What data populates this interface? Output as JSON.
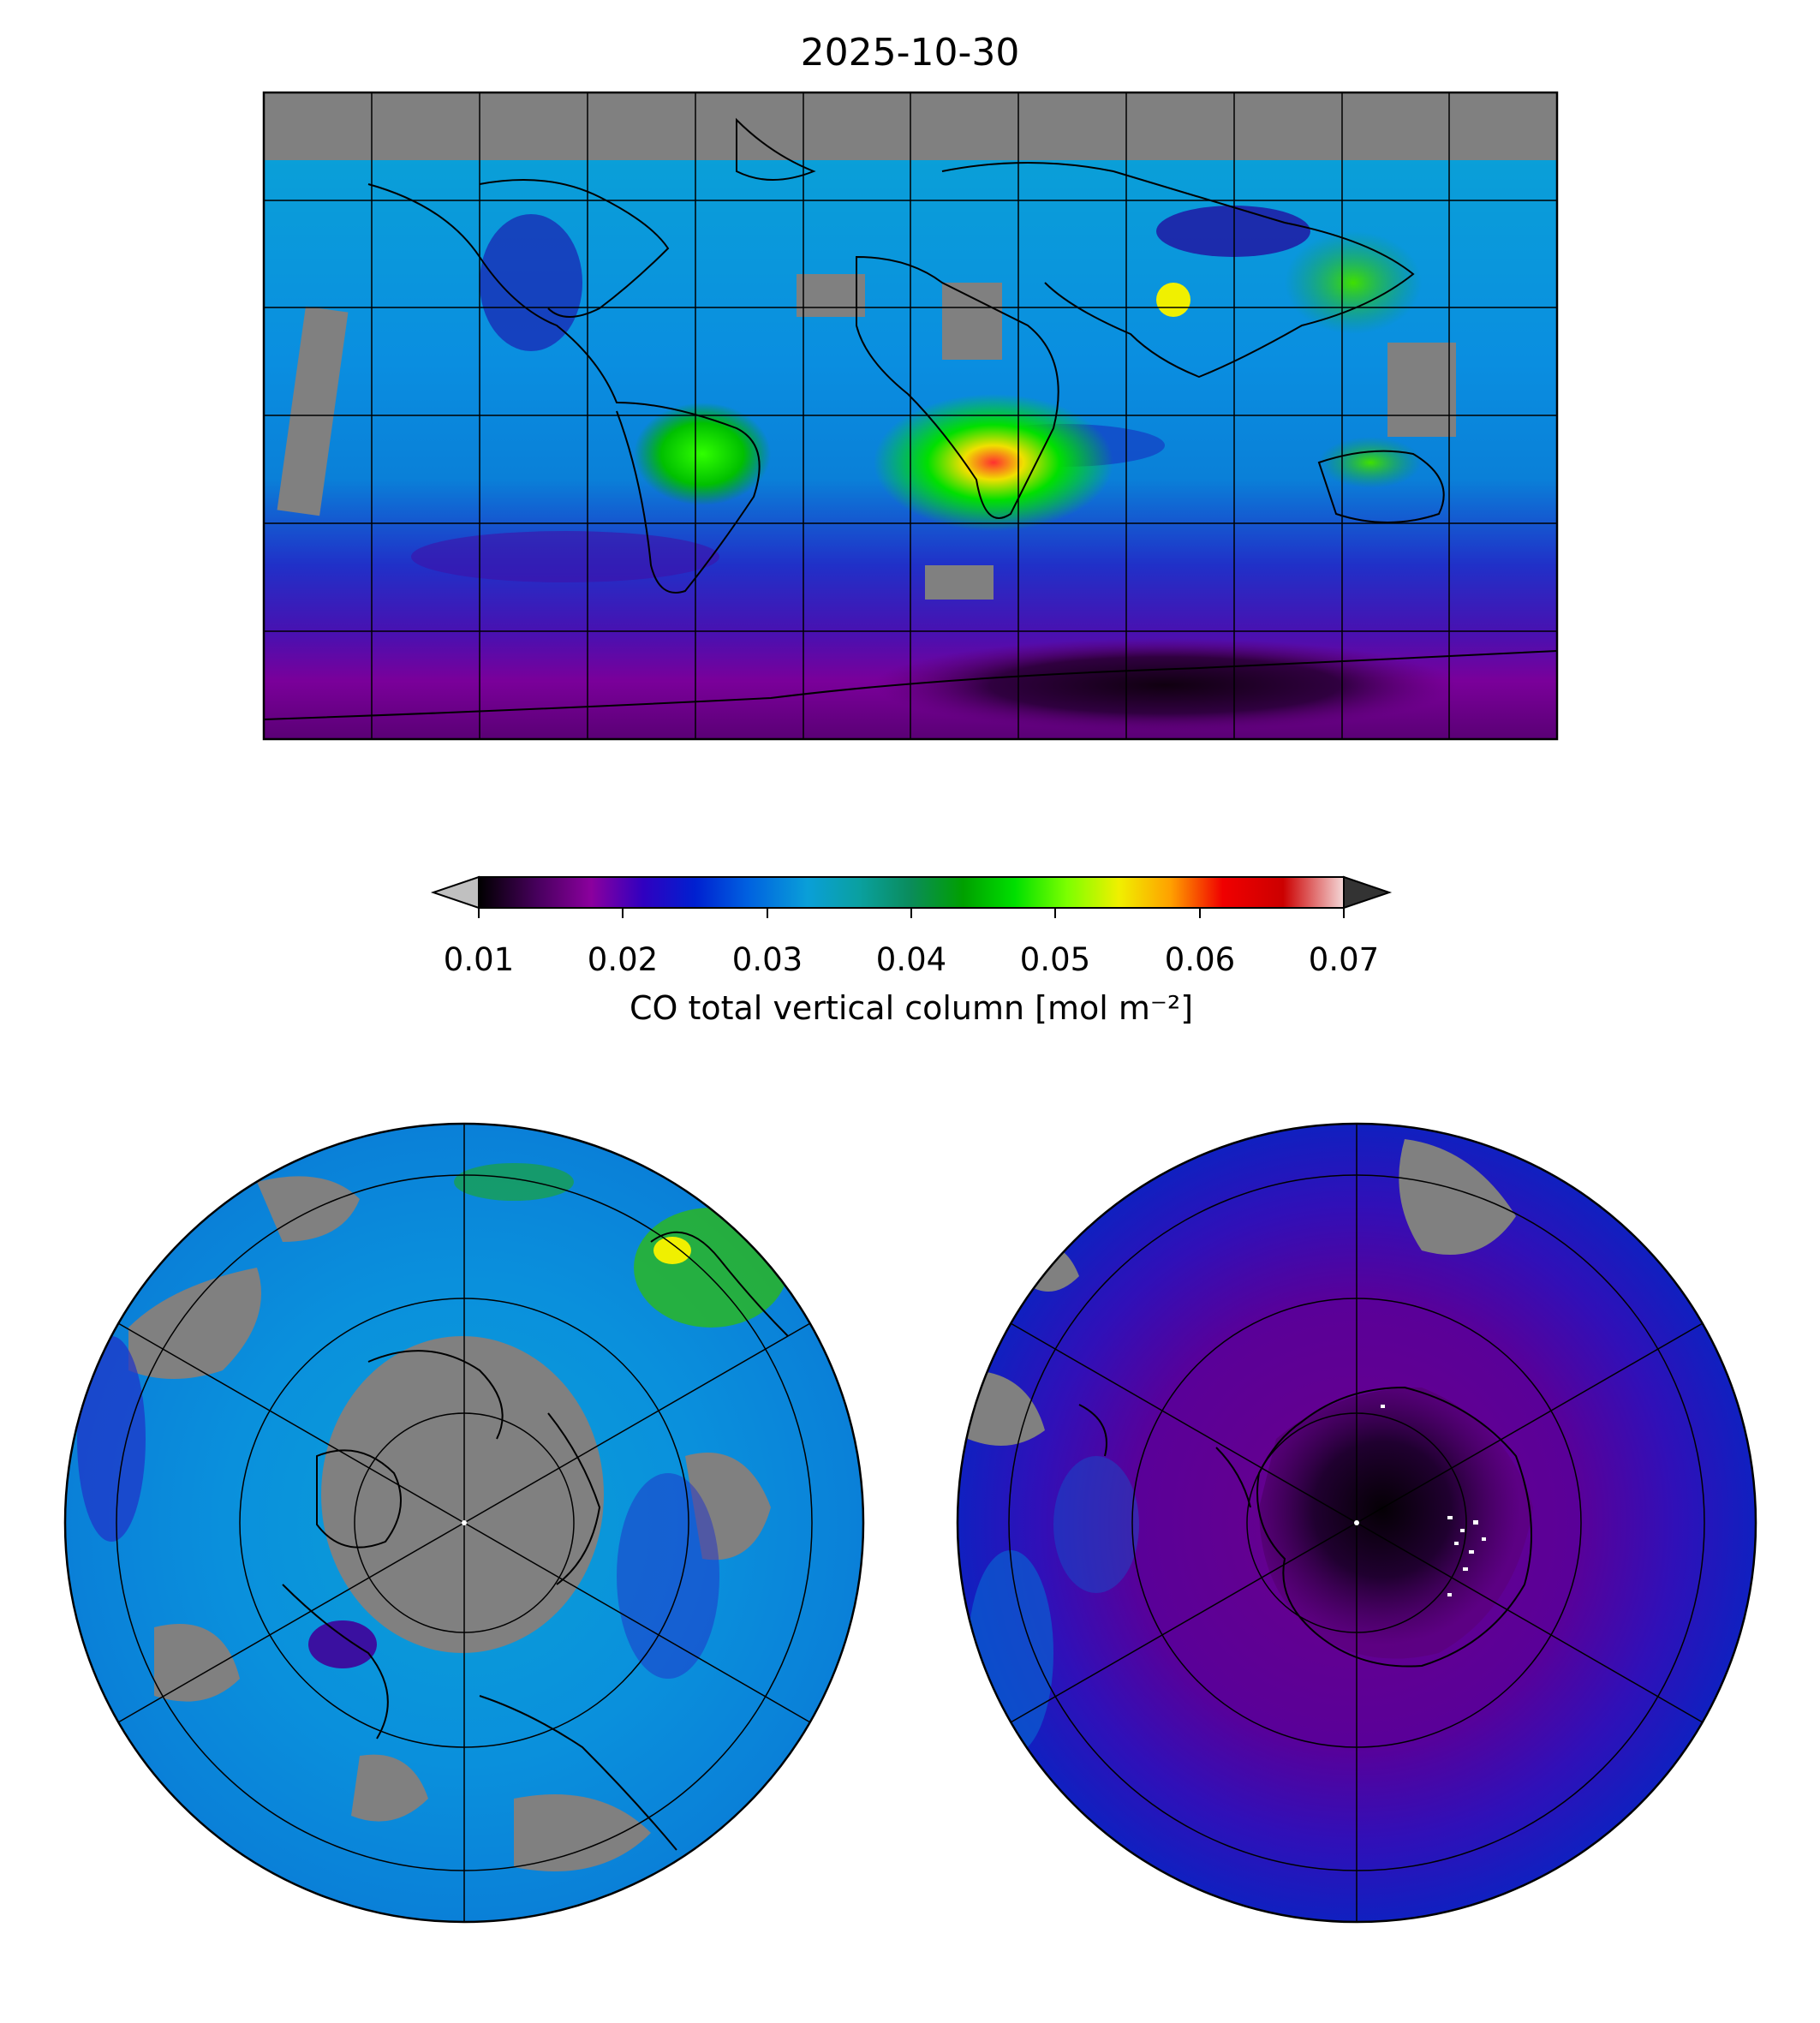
{
  "title": "2025-10-30",
  "colorbar": {
    "ticks": [
      "0.01",
      "0.02",
      "0.03",
      "0.04",
      "0.05",
      "0.06",
      "0.07"
    ],
    "label": "CO total vertical column [mol m⁻²]",
    "range": [
      0.01,
      0.07
    ],
    "extend": "both",
    "under_color": "#c0c0c0",
    "over_color": "#333333",
    "stops": [
      "#000000",
      "#6a008a",
      "#8b009e",
      "#1a00c8",
      "#0044dd",
      "#0a9fd8",
      "#0aa0a0",
      "#0a8c5a",
      "#00a000",
      "#00e000",
      "#7cff00",
      "#f0f000",
      "#ffa000",
      "#f00000",
      "#cc0000",
      "#f4d0d0"
    ]
  },
  "colors": {
    "missing": "#808080",
    "background": "#ffffff",
    "coast": "#000000"
  },
  "panels": [
    {
      "name": "global",
      "projection": "plate-carree",
      "gridlines": true
    },
    {
      "name": "north-polar",
      "projection": "north-polar-stereographic",
      "gridlines": true
    },
    {
      "name": "south-polar",
      "projection": "south-polar-stereographic",
      "gridlines": true
    }
  ]
}
